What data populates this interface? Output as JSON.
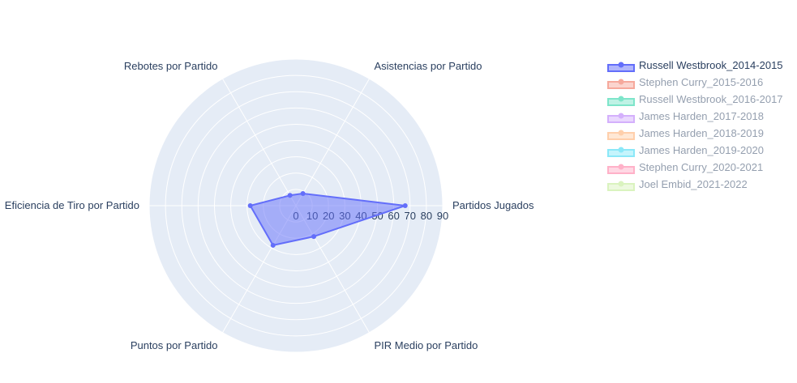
{
  "chart_data": {
    "type": "radar",
    "axes": [
      "Partidos Jugados",
      "Asistencias por Partido",
      "Rebotes por Partido",
      "Eficiencia de Tiro por Partido",
      "Puntos por Partido",
      "PIR Medio por Partido"
    ],
    "radial_ticks": [
      "0",
      "10",
      "20",
      "30",
      "40",
      "50",
      "60",
      "70",
      "80",
      "90"
    ],
    "radial_range": [
      0,
      90
    ],
    "grid": true,
    "legend_placement": "top-right",
    "series": [
      {
        "name": "Russell Westbrook_2014-2015",
        "color": "#636efa",
        "visible": true,
        "values": [
          67,
          8.6,
          7.3,
          28,
          28.1,
          21.9
        ]
      },
      {
        "name": "Stephen Curry_2015-2016",
        "color": "#EF553B",
        "visible": false,
        "values": []
      },
      {
        "name": "Russell Westbrook_2016-2017",
        "color": "#00cc96",
        "visible": false,
        "values": []
      },
      {
        "name": "James Harden_2017-2018",
        "color": "#ab63fa",
        "visible": false,
        "values": []
      },
      {
        "name": "James Harden_2018-2019",
        "color": "#FFA15A",
        "visible": false,
        "values": []
      },
      {
        "name": "James Harden_2019-2020",
        "color": "#19d3f3",
        "visible": false,
        "values": []
      },
      {
        "name": "Stephen Curry_2020-2021",
        "color": "#FF6692",
        "visible": false,
        "values": []
      },
      {
        "name": "Joel Embid_2021-2022",
        "color": "#B6E880",
        "visible": false,
        "values": []
      }
    ]
  }
}
